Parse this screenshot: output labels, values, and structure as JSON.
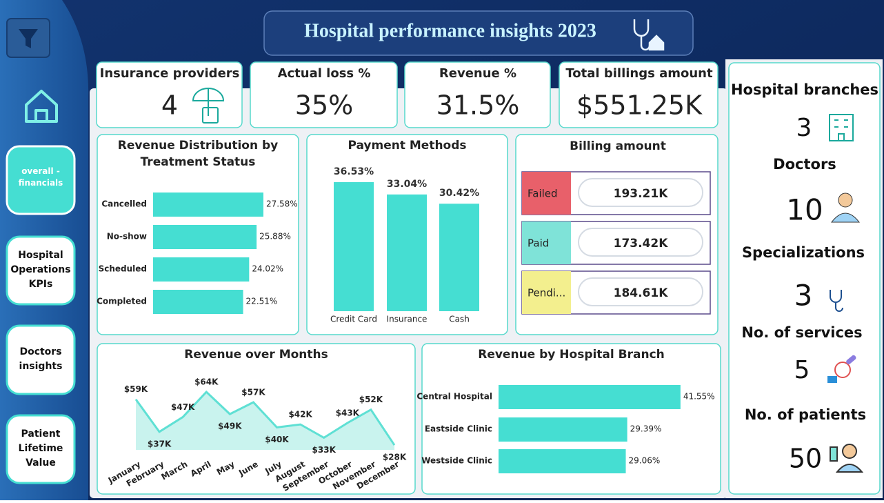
{
  "header": {
    "title": "Hospital performance insights 2023"
  },
  "nav": [
    {
      "label": "overall - financials"
    },
    {
      "label": "Hospital Operations KPIs"
    },
    {
      "label": "Doctors insights"
    },
    {
      "label": "Patient Lifetime Value"
    }
  ],
  "kpis": [
    {
      "label": "Insurance providers",
      "value": "4"
    },
    {
      "label": "Actual loss %",
      "value": "35%"
    },
    {
      "label": "Revenue %",
      "value": "31.5%"
    },
    {
      "label": "Total billings amount",
      "value": "$551.25K"
    }
  ],
  "side_stats": [
    {
      "label": "Hospital branches",
      "value": "3"
    },
    {
      "label": "Doctors",
      "value": "10"
    },
    {
      "label": "Specializations",
      "value": "3"
    },
    {
      "label": "No. of services",
      "value": "5"
    },
    {
      "label": "No. of patients",
      "value": "50"
    }
  ],
  "billing": {
    "title": "Billing amount",
    "items": [
      {
        "status": "Failed",
        "amount": "193.21K",
        "color": "#e8606a"
      },
      {
        "status": "Paid",
        "amount": "173.42K",
        "color": "#7fe3d8"
      },
      {
        "status": "Pendi...",
        "amount": "184.61K",
        "color": "#f3ef8e"
      }
    ]
  },
  "chart_data": [
    {
      "type": "bar",
      "orientation": "horizontal",
      "title": "Revenue Distribution by Treatment Status",
      "categories": [
        "Cancelled",
        "No-show",
        "Scheduled",
        "Completed"
      ],
      "values": [
        27.58,
        25.88,
        24.02,
        22.51
      ],
      "value_labels": [
        "27.58%",
        "25.88%",
        "24.02%",
        "22.51%"
      ],
      "color": "#45ded2"
    },
    {
      "type": "bar",
      "orientation": "vertical",
      "title": "Payment Methods",
      "categories": [
        "Credit Card",
        "Insurance",
        "Cash"
      ],
      "values": [
        36.53,
        33.04,
        30.42
      ],
      "value_labels": [
        "36.53%",
        "33.04%",
        "30.42%"
      ],
      "color": "#45ded2"
    },
    {
      "type": "area",
      "title": "Revenue over Months",
      "categories": [
        "January",
        "February",
        "March",
        "April",
        "May",
        "June",
        "July",
        "August",
        "September",
        "October",
        "November",
        "December"
      ],
      "values": [
        59000,
        37000,
        47000,
        64000,
        49000,
        57000,
        40000,
        42000,
        33000,
        43000,
        52000,
        28000
      ],
      "value_labels": [
        "$59K",
        "$37K",
        "$47K",
        "$64K",
        "$49K",
        "$57K",
        "$40K",
        "$42K",
        "$33K",
        "$43K",
        "$52K",
        "$28K"
      ],
      "color": "#5fe0d4"
    },
    {
      "type": "bar",
      "orientation": "horizontal",
      "title": "Revenue by Hospital Branch",
      "categories": [
        "Central Hospital",
        "Eastside Clinic",
        "Westside Clinic"
      ],
      "values": [
        41.55,
        29.39,
        29.06
      ],
      "value_labels": [
        "41.55%",
        "29.39%",
        "29.06%"
      ],
      "color": "#45ded2"
    }
  ]
}
